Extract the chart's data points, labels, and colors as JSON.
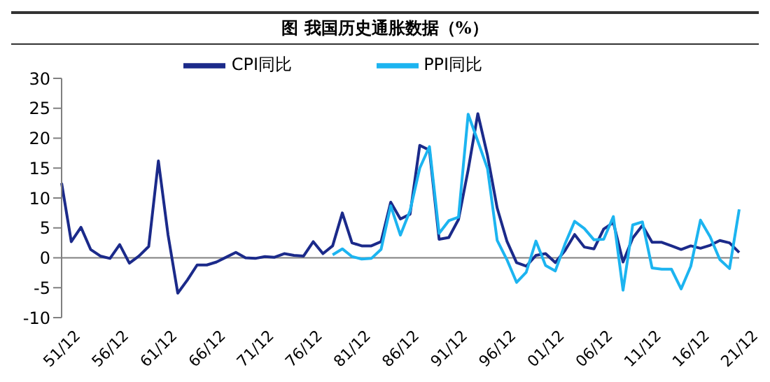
{
  "chart_data": {
    "type": "line",
    "title": "图  我国历史通胀数据（%）",
    "categories": [
      "51/12",
      null,
      null,
      null,
      null,
      "56/12",
      null,
      null,
      null,
      null,
      "61/12",
      null,
      null,
      null,
      null,
      "66/12",
      null,
      null,
      null,
      null,
      "71/12",
      null,
      null,
      null,
      null,
      "76/12",
      null,
      null,
      null,
      null,
      "81/12",
      null,
      null,
      null,
      null,
      "86/12",
      null,
      null,
      null,
      null,
      "91/12",
      null,
      null,
      null,
      null,
      "96/12",
      null,
      null,
      null,
      null,
      "01/12",
      null,
      null,
      null,
      null,
      "06/12",
      null,
      null,
      null,
      null,
      "11/12",
      null,
      null,
      null,
      null,
      "16/12",
      null,
      null,
      null,
      null,
      "21/12"
    ],
    "series": [
      {
        "name": "CPI同比",
        "color": "#1b2a8a",
        "values": [
          12.5,
          2.7,
          5.1,
          1.4,
          0.3,
          -0.1,
          2.2,
          -0.9,
          0.3,
          1.9,
          16.2,
          3.8,
          -5.9,
          -3.7,
          -1.2,
          -1.2,
          -0.7,
          0.1,
          0.9,
          0,
          -0.1,
          0.2,
          0.1,
          0.7,
          0.4,
          0.3,
          2.7,
          0.7,
          2.0,
          7.5,
          2.5,
          2.0,
          2.0,
          2.7,
          9.3,
          6.5,
          7.3,
          18.8,
          18.0,
          3.1,
          3.4,
          6.4,
          14.7,
          24.1,
          17.1,
          8.3,
          2.8,
          -0.8,
          -1.4,
          0.4,
          0.7,
          -0.8,
          1.2,
          3.9,
          1.8,
          1.5,
          4.8,
          5.9,
          -0.7,
          3.3,
          5.4,
          2.6,
          2.6,
          2.0,
          1.4,
          2.0,
          1.6,
          2.1,
          2.9,
          2.5,
          0.9
        ]
      },
      {
        "name": "PPI同比",
        "color": "#1cb4f0",
        "values": [
          null,
          null,
          null,
          null,
          null,
          null,
          null,
          null,
          null,
          null,
          null,
          null,
          null,
          null,
          null,
          null,
          null,
          null,
          null,
          null,
          null,
          null,
          null,
          null,
          null,
          null,
          null,
          null,
          0.5,
          1.5,
          0.2,
          -0.2,
          -0.1,
          1.4,
          8.7,
          3.8,
          7.9,
          15.0,
          18.6,
          4.1,
          6.2,
          6.8,
          24.0,
          19.5,
          14.9,
          2.9,
          -0.3,
          -4.1,
          -2.4,
          2.8,
          -1.3,
          -2.2,
          2.3,
          6.1,
          4.9,
          3.0,
          3.1,
          6.9,
          -5.4,
          5.5,
          6.0,
          -1.7,
          -1.9,
          -1.9,
          -5.2,
          -1.4,
          6.3,
          3.5,
          -0.3,
          -1.8,
          8.1
        ]
      }
    ],
    "ylim": [
      -10,
      30
    ],
    "yticks": [
      -10,
      -5,
      0,
      5,
      10,
      15,
      20,
      25,
      30
    ],
    "ref_lines": [
      {
        "axis": "y",
        "value": 0,
        "color": "#808080"
      }
    ],
    "grid": false,
    "legend": "top",
    "marker": "none",
    "line_style": "solid"
  }
}
